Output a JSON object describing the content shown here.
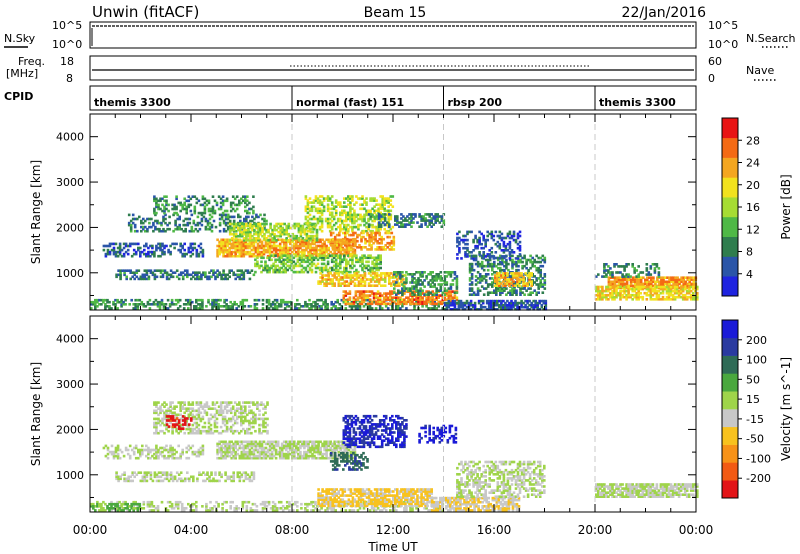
{
  "header": {
    "title_left": "Unwin (fitACF)",
    "title_center": "Beam 15",
    "title_right": "22/Jan/2016"
  },
  "noise_panel": {
    "left_label": "N.Sky",
    "right_label": "N.Search",
    "left_ticks": [
      "10^5",
      "10^0"
    ],
    "right_ticks": [
      "10^5",
      "10^0"
    ]
  },
  "freq_panel": {
    "left_label_1": "Freq.",
    "left_label_2": "[MHz]",
    "right_label": "Nave",
    "left_ticks": [
      "18",
      "8"
    ],
    "right_ticks": [
      "60",
      "0"
    ]
  },
  "cpid_panel": {
    "label": "CPID",
    "segments": [
      {
        "start_hour": 0,
        "text": "themis 3300"
      },
      {
        "start_hour": 8,
        "text": "normal (fast) 151"
      },
      {
        "start_hour": 14,
        "text": "rbsp 200"
      },
      {
        "start_hour": 20,
        "text": "themis 3300"
      }
    ]
  },
  "colors": {
    "power": [
      "#1f24e0",
      "#2a55a8",
      "#2f7d4e",
      "#4fb846",
      "#a6dc33",
      "#f2e21e",
      "#f4a620",
      "#f46a14",
      "#e81414"
    ],
    "velocity": [
      "#e21418",
      "#f25a14",
      "#f79218",
      "#f8c21e",
      "#c8c8c8",
      "#9fd44a",
      "#4aa83e",
      "#2f6b56",
      "#2a3aa0",
      "#1a1ad8"
    ]
  },
  "x_axis": {
    "title": "Time UT",
    "ticks": [
      "00:00",
      "04:00",
      "08:00",
      "12:00",
      "16:00",
      "20:00",
      "00:00"
    ]
  },
  "chart_data": [
    {
      "type": "heatmap",
      "panel": "power",
      "ylabel": "Slant Range [km]",
      "xlim_hours": [
        0,
        24
      ],
      "ylim_km": [
        180,
        4500
      ],
      "y_ticks": [
        "1000",
        "2000",
        "3000",
        "4000"
      ],
      "colorbar_label": "Power [dB]",
      "colorbar_ticks": [
        "4",
        "8",
        "12",
        "16",
        "20",
        "24",
        "28"
      ],
      "colorbar_range": [
        0,
        32
      ],
      "regions": [
        {
          "t0": 0.0,
          "t1": 14.0,
          "r0": 200,
          "r1": 420,
          "value": 10,
          "density": 0.45
        },
        {
          "t0": 1.0,
          "t1": 6.5,
          "r0": 850,
          "r1": 1050,
          "value": 8,
          "density": 0.55
        },
        {
          "t0": 0.5,
          "t1": 4.5,
          "r0": 1350,
          "r1": 1650,
          "value": 6,
          "density": 0.45
        },
        {
          "t0": 1.5,
          "t1": 7.0,
          "r0": 1900,
          "r1": 2300,
          "value": 8,
          "density": 0.35
        },
        {
          "t0": 2.5,
          "t1": 6.5,
          "r0": 2300,
          "r1": 2700,
          "value": 10,
          "density": 0.4
        },
        {
          "t0": 5.0,
          "t1": 10.5,
          "r0": 1350,
          "r1": 1750,
          "value": 23,
          "density": 0.8
        },
        {
          "t0": 5.5,
          "t1": 9.0,
          "r0": 1700,
          "r1": 2100,
          "value": 16,
          "density": 0.6
        },
        {
          "t0": 6.5,
          "t1": 11.5,
          "r0": 1000,
          "r1": 1400,
          "value": 14,
          "density": 0.55
        },
        {
          "t0": 8.5,
          "t1": 12.0,
          "r0": 1900,
          "r1": 2700,
          "value": 17,
          "density": 0.5
        },
        {
          "t0": 9.0,
          "t1": 12.5,
          "r0": 700,
          "r1": 1000,
          "value": 21,
          "density": 0.65
        },
        {
          "t0": 9.5,
          "t1": 12.0,
          "r0": 1500,
          "r1": 1900,
          "value": 24,
          "density": 0.55
        },
        {
          "t0": 10.0,
          "t1": 14.5,
          "r0": 300,
          "r1": 600,
          "value": 25,
          "density": 0.7
        },
        {
          "t0": 11.0,
          "t1": 14.0,
          "r0": 2000,
          "r1": 2300,
          "value": 8,
          "density": 0.5
        },
        {
          "t0": 12.0,
          "t1": 14.5,
          "r0": 500,
          "r1": 1000,
          "value": 10,
          "density": 0.45
        },
        {
          "t0": 14.0,
          "t1": 18.0,
          "r0": 180,
          "r1": 400,
          "value": 5,
          "density": 0.7
        },
        {
          "t0": 15.0,
          "t1": 18.0,
          "r0": 500,
          "r1": 1400,
          "value": 9,
          "density": 0.45
        },
        {
          "t0": 16.0,
          "t1": 17.5,
          "r0": 700,
          "r1": 1000,
          "value": 22,
          "density": 0.6
        },
        {
          "t0": 14.5,
          "t1": 17.0,
          "r0": 1300,
          "r1": 1900,
          "value": 5,
          "density": 0.35
        },
        {
          "t0": 20.5,
          "t1": 24.0,
          "r0": 650,
          "r1": 900,
          "value": 24,
          "density": 0.85
        },
        {
          "t0": 20.0,
          "t1": 24.0,
          "r0": 400,
          "r1": 700,
          "value": 20,
          "density": 0.7
        },
        {
          "t0": 20.0,
          "t1": 22.5,
          "r0": 900,
          "r1": 1200,
          "value": 9,
          "density": 0.4
        }
      ]
    },
    {
      "type": "heatmap",
      "panel": "velocity",
      "ylabel": "Slant Range [km]",
      "xlim_hours": [
        0,
        24
      ],
      "ylim_km": [
        180,
        4500
      ],
      "y_ticks": [
        "1000",
        "2000",
        "3000",
        "4000"
      ],
      "colorbar_label": "Velocity [m s^-1]",
      "colorbar_ticks": [
        "-200",
        "-100",
        "-50",
        "-15",
        "15",
        "50",
        "100",
        "200"
      ],
      "colorbar_range": [
        -250,
        250
      ],
      "regions": [
        {
          "t0": 0.0,
          "t1": 14.0,
          "r0": 200,
          "r1": 420,
          "value": 0,
          "density": 0.4
        },
        {
          "t0": 1.0,
          "t1": 6.5,
          "r0": 850,
          "r1": 1050,
          "value": 0,
          "density": 0.5
        },
        {
          "t0": 0.5,
          "t1": 4.5,
          "r0": 1350,
          "r1": 1650,
          "value": 0,
          "density": 0.4
        },
        {
          "t0": 2.5,
          "t1": 7.0,
          "r0": 1900,
          "r1": 2600,
          "value": 0,
          "density": 0.5
        },
        {
          "t0": 5.0,
          "t1": 10.5,
          "r0": 1350,
          "r1": 1750,
          "value": 0,
          "density": 0.75
        },
        {
          "t0": 9.0,
          "t1": 13.5,
          "r0": 300,
          "r1": 700,
          "value": -60,
          "density": 0.75
        },
        {
          "t0": 10.0,
          "t1": 12.5,
          "r0": 1600,
          "r1": 2300,
          "value": 200,
          "density": 0.55
        },
        {
          "t0": 9.5,
          "t1": 11.0,
          "r0": 1100,
          "r1": 1500,
          "value": 130,
          "density": 0.5
        },
        {
          "t0": 13.5,
          "t1": 17.0,
          "r0": 200,
          "r1": 500,
          "value": -40,
          "density": 0.7
        },
        {
          "t0": 14.5,
          "t1": 18.0,
          "r0": 500,
          "r1": 1300,
          "value": 0,
          "density": 0.5
        },
        {
          "t0": 13.0,
          "t1": 14.5,
          "r0": 1700,
          "r1": 2100,
          "value": 220,
          "density": 0.45
        },
        {
          "t0": 3.0,
          "t1": 4.0,
          "r0": 2000,
          "r1": 2300,
          "value": -220,
          "density": 0.4
        },
        {
          "t0": 20.0,
          "t1": 24.0,
          "r0": 500,
          "r1": 800,
          "value": 0,
          "density": 0.8
        },
        {
          "t0": 0.0,
          "t1": 2.0,
          "r0": 200,
          "r1": 350,
          "value": 70,
          "density": 0.5
        }
      ]
    }
  ]
}
